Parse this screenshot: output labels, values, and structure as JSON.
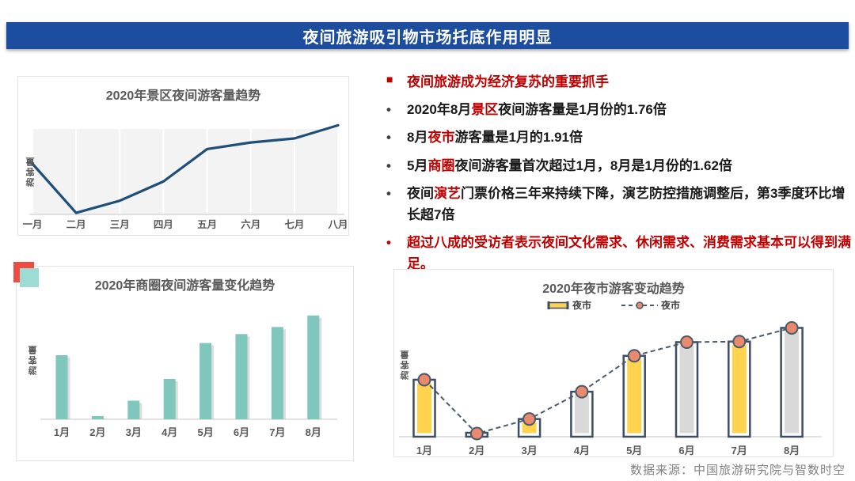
{
  "page": {
    "title": "夜间旅游吸引物市场托底作用明显",
    "source": "数据来源：中国旅游研究院与智数时空"
  },
  "colors": {
    "banner_blue": "#1c4d9e",
    "accent_red": "#c00000",
    "line_navy": "#1f4e79",
    "bar_teal": "#7fc6bc",
    "bar_yellow": "#ffd34d",
    "bar_gray": "#d9d9d9",
    "bar_outline": "#3d4d63",
    "marker_coral": "#e98a6e",
    "axis_text": "#595959",
    "ornament_red": "#ee4b43",
    "ornament_teal": "#9cdcd2"
  },
  "bullets": {
    "items": [
      {
        "marker": "■",
        "marker_color": "#c00000",
        "segments": [
          {
            "text": "夜间旅游成为经济复苏的重要抓手",
            "red": true
          }
        ]
      },
      {
        "marker": "•",
        "marker_color": "#404040",
        "segments": [
          {
            "text": "2020年8月",
            "red": false
          },
          {
            "text": "景区",
            "red": true
          },
          {
            "text": "夜间游客量是1月份的1.76倍",
            "red": false
          }
        ]
      },
      {
        "marker": "•",
        "marker_color": "#404040",
        "segments": [
          {
            "text": "8月",
            "red": false
          },
          {
            "text": "夜市",
            "red": true
          },
          {
            "text": "游客量是1月的1.91倍",
            "red": false
          }
        ]
      },
      {
        "marker": "•",
        "marker_color": "#404040",
        "segments": [
          {
            "text": "5月",
            "red": false
          },
          {
            "text": "商圈",
            "red": true
          },
          {
            "text": "夜间游客量首次超过1月，8月是1月份的1.62倍",
            "red": false
          }
        ]
      },
      {
        "marker": "•",
        "marker_color": "#404040",
        "segments": [
          {
            "text": "夜间",
            "red": false
          },
          {
            "text": "演艺",
            "red": true
          },
          {
            "text": "门票价格三年来持续下降，演艺防控措施调整后，第3季度环比增长超7倍",
            "red": false
          }
        ]
      },
      {
        "marker": "•",
        "marker_color": "#c00000",
        "segments": [
          {
            "text": "超过八成的受访者表示夜间文化需求、休闲需求、消费需求基本可以得到满足。",
            "red": true
          }
        ]
      }
    ]
  },
  "chart_data": [
    {
      "type": "line",
      "title": "2020年景区夜间游客量趋势",
      "ylabel": "游客量",
      "xlabel": "",
      "categories": [
        "一月",
        "二月",
        "三月",
        "四月",
        "五月",
        "六月",
        "七月",
        "八月"
      ],
      "values": [
        1.0,
        0.03,
        0.27,
        0.65,
        1.29,
        1.42,
        1.5,
        1.76
      ],
      "ylim": [
        0,
        1.9
      ],
      "grid": "vertical-white-on-gray",
      "legend_position": "none",
      "line_color": "#1f4e79"
    },
    {
      "type": "bar",
      "title": "2020年商圈夜间游客量变化趋势",
      "ylabel": "游客量",
      "xlabel": "",
      "categories": [
        "1月",
        "2月",
        "3月",
        "4月",
        "5月",
        "6月",
        "7月",
        "8月"
      ],
      "values": [
        1.0,
        0.05,
        0.29,
        0.63,
        1.19,
        1.33,
        1.44,
        1.62
      ],
      "ylim": [
        0,
        1.75
      ],
      "grid": "off",
      "legend_position": "none",
      "bar_color": "#7fc6bc"
    },
    {
      "type": "bar+line",
      "title": "2020年夜市游客变动趋势",
      "ylabel": "游客量",
      "xlabel": "",
      "categories": [
        "1月",
        "2月",
        "3月",
        "4月",
        "5月",
        "6月",
        "7月",
        "8月"
      ],
      "series": [
        {
          "name": "夜市",
          "type": "bar",
          "values": [
            1.0,
            0.05,
            0.31,
            0.79,
            1.42,
            1.66,
            1.67,
            1.91
          ],
          "fills": [
            "#ffd34d",
            "#ffffff",
            "#ffd34d",
            "#d9d9d9",
            "#ffd34d",
            "#d9d9d9",
            "#ffd34d",
            "#d9d9d9"
          ],
          "outline": "#3d4d63"
        },
        {
          "name": "夜市",
          "type": "line",
          "values": [
            1.0,
            0.05,
            0.31,
            0.79,
            1.42,
            1.66,
            1.67,
            1.91
          ],
          "style": "dashed",
          "line_color": "#4a5a6a",
          "marker_color": "#e98a6e"
        }
      ],
      "ylim": [
        0,
        2.1
      ],
      "grid": "off",
      "legend_position": "top-center"
    }
  ]
}
